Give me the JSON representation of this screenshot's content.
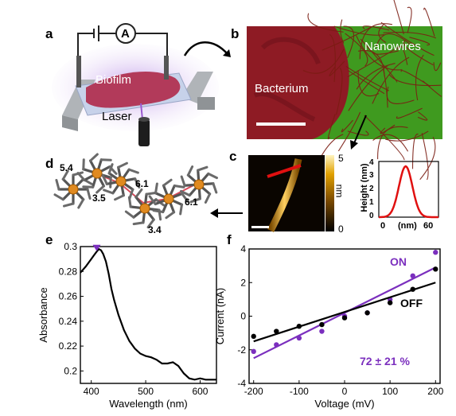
{
  "panels": {
    "a": "a",
    "b": "b",
    "c": "c",
    "d": "d",
    "e": "e",
    "f": "f"
  },
  "panel_a": {
    "meter": "A",
    "biofilm": "Biofilm",
    "laser": "Laser"
  },
  "panel_b": {
    "left": "Bacterium",
    "right": "Nanowires"
  },
  "panel_c": {
    "colorbar_ticks": [
      "5",
      "0"
    ],
    "colorbar_unit": "nm",
    "profile_ylabel": "Height (nm)",
    "profile_yticks": [
      "4",
      "3",
      "2",
      "1",
      "0"
    ],
    "profile_xticks": [
      "0",
      "(nm)",
      "60"
    ]
  },
  "panel_d": {
    "distances": [
      "5.4",
      "3.5",
      "6.1",
      "6.1",
      "3.4"
    ]
  },
  "chart_data": [
    {
      "type": "line",
      "xlabel": "Wavelength (nm)",
      "ylabel": "Absorbance",
      "xlim": [
        380,
        630
      ],
      "ylim": [
        0.19,
        0.3
      ],
      "xticks": [
        "400",
        "500",
        "600"
      ],
      "yticks": [
        "0.3",
        "0.28",
        "0.26",
        "0.24",
        "0.22",
        "0.2"
      ],
      "marker": {
        "x": 410,
        "y": 0.2995,
        "color": "#7b2fbe"
      },
      "series": [
        {
          "x": [
            380,
            390,
            400,
            405,
            410,
            414,
            418,
            422,
            427,
            432,
            437,
            442,
            450,
            460,
            470,
            480,
            490,
            500,
            510,
            520,
            530,
            540,
            550,
            560,
            570,
            580,
            590,
            600,
            610,
            620,
            630
          ],
          "y": [
            0.279,
            0.284,
            0.29,
            0.293,
            0.296,
            0.298,
            0.297,
            0.294,
            0.288,
            0.278,
            0.266,
            0.257,
            0.245,
            0.233,
            0.224,
            0.218,
            0.214,
            0.212,
            0.211,
            0.209,
            0.206,
            0.206,
            0.207,
            0.204,
            0.198,
            0.194,
            0.193,
            0.194,
            0.193,
            0.193,
            0.193
          ],
          "color": "#000000"
        }
      ]
    },
    {
      "type": "scatter",
      "xlabel": "Voltage (mV)",
      "ylabel": "Current (nA)",
      "xlim": [
        -210,
        210
      ],
      "ylim": [
        -4,
        4
      ],
      "xticks": [
        "-200",
        "-100",
        "0",
        "100",
        "200"
      ],
      "yticks": [
        "4",
        "2",
        "0",
        "-2",
        "-4"
      ],
      "annotation": "72 ± 21 %",
      "series": [
        {
          "name": "ON",
          "color": "#7b2fbe",
          "x": [
            -200,
            -150,
            -100,
            -50,
            0,
            50,
            100,
            150,
            200
          ],
          "y": [
            -2.1,
            -1.7,
            -1.3,
            -0.9,
            0.0,
            0.2,
            1.0,
            2.4,
            3.8
          ],
          "fit": [
            [
              -200,
              -2.5
            ],
            [
              200,
              2.9
            ]
          ]
        },
        {
          "name": "OFF",
          "color": "#000000",
          "x": [
            -200,
            -150,
            -100,
            -50,
            0,
            50,
            100,
            150,
            200
          ],
          "y": [
            -1.2,
            -0.9,
            -0.6,
            -0.5,
            -0.1,
            0.2,
            0.8,
            1.6,
            2.8
          ],
          "fit": [
            [
              -200,
              -1.5
            ],
            [
              200,
              2.0
            ]
          ]
        }
      ]
    }
  ]
}
